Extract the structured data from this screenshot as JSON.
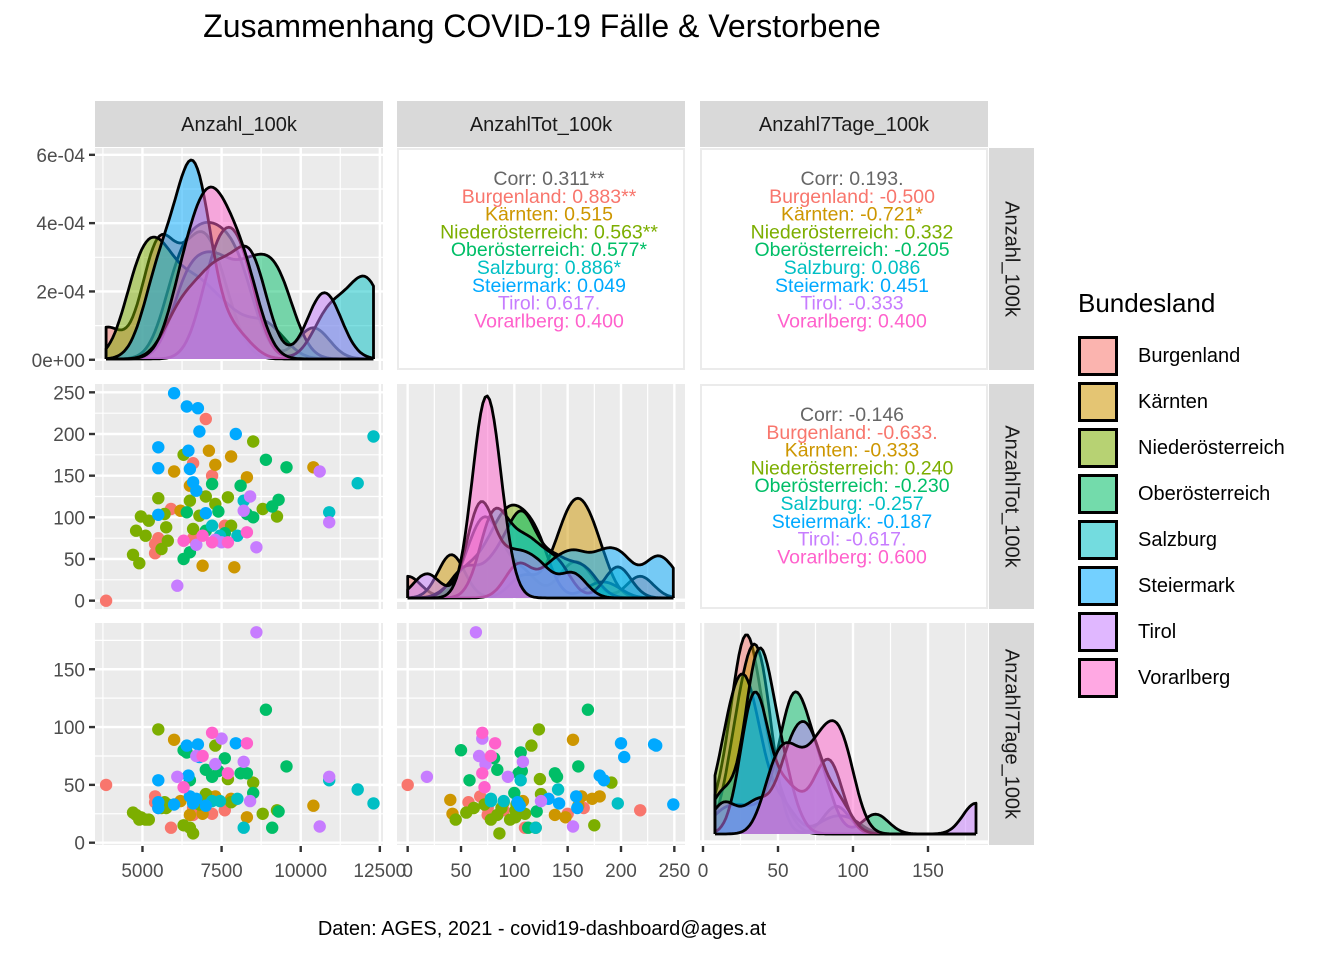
{
  "title": "Zusammenhang COVID-19 Fälle & Verstorbene",
  "caption": "Daten: AGES, 2021 - covid19-dashboard@ages.at",
  "legend": {
    "title": "Bundesland",
    "items": [
      {
        "label": "Burgenland",
        "color": "#F8766D"
      },
      {
        "label": "Kärnten",
        "color": "#CD9600"
      },
      {
        "label": "Niederösterreich",
        "color": "#7CAE00"
      },
      {
        "label": "Oberösterreich",
        "color": "#00BE67"
      },
      {
        "label": "Salzburg",
        "color": "#00BFC4"
      },
      {
        "label": "Steiermark",
        "color": "#00A9FF"
      },
      {
        "label": "Tirol",
        "color": "#C77CFF"
      },
      {
        "label": "Vorarlberg",
        "color": "#FF61CC"
      }
    ]
  },
  "chart_data": {
    "type": "scatter",
    "subtype": "pairs-matrix (ggpairs)",
    "title": "Zusammenhang COVID-19 Fälle & Verstorbene",
    "variables": [
      "Anzahl_100k",
      "AnzahlTot_100k",
      "Anzahl7Tage_100k"
    ],
    "groups": [
      "Burgenland",
      "Kärnten",
      "Niederösterreich",
      "Oberösterreich",
      "Salzburg",
      "Steiermark",
      "Tirol",
      "Vorarlberg"
    ],
    "axes": {
      "Anzahl_100k": {
        "range": [
          3500,
          12600
        ],
        "ticks": [
          "5000",
          "7500",
          "10000",
          "12500"
        ],
        "tick_values": [
          5000,
          7500,
          10000,
          12500
        ]
      },
      "AnzahlTot_100k": {
        "range": [
          -10,
          260
        ],
        "ticks": [
          "0",
          "50",
          "100",
          "150",
          "200",
          "250"
        ],
        "tick_values": [
          0,
          50,
          100,
          150,
          200,
          250
        ]
      },
      "Anzahl7Tage_100k": {
        "range": [
          -2,
          190
        ],
        "ticks": [
          "0",
          "50",
          "100",
          "150"
        ],
        "tick_values": [
          0,
          50,
          100,
          150
        ]
      },
      "density_row1": {
        "range": [
          -3e-05,
          0.00062
        ],
        "ticks": [
          "0e+00",
          "2e-04",
          "4e-04",
          "6e-04"
        ],
        "tick_values": [
          0,
          0.0002,
          0.0004,
          0.0006
        ]
      }
    },
    "grid": true,
    "legend_position": "right",
    "correlations": {
      "Anzahl_100k__AnzahlTot_100k": {
        "overall": "Corr: 0.311**",
        "by_group": [
          "Burgenland: 0.883**",
          "Kärnten: 0.515",
          "Niederösterreich: 0.563**",
          "Oberösterreich: 0.577*",
          "Salzburg: 0.886*",
          "Steiermark: 0.049",
          "Tirol: 0.617.",
          "Vorarlberg: 0.400"
        ]
      },
      "Anzahl_100k__Anzahl7Tage_100k": {
        "overall": "Corr: 0.193.",
        "by_group": [
          "Burgenland: -0.500",
          "Kärnten: -0.721*",
          "Niederösterreich: 0.332",
          "Oberösterreich: -0.205",
          "Salzburg: 0.086",
          "Steiermark: 0.451",
          "Tirol: -0.333",
          "Vorarlberg: 0.400"
        ]
      },
      "AnzahlTot_100k__Anzahl7Tage_100k": {
        "overall": "Corr: -0.146",
        "by_group": [
          "Burgenland: -0.633.",
          "Kärnten: -0.333",
          "Niederösterreich: 0.240",
          "Oberösterreich: -0.230",
          "Salzburg: -0.257",
          "Steiermark: -0.187",
          "Tirol: -0.617.",
          "Vorarlberg: 0.600"
        ]
      }
    },
    "points": [
      {
        "g": 0,
        "a": 3850,
        "t": 0,
        "s": 50
      },
      {
        "g": 0,
        "a": 7000,
        "t": 218,
        "s": 28
      },
      {
        "g": 0,
        "a": 6600,
        "t": 165,
        "s": 30
      },
      {
        "g": 0,
        "a": 7200,
        "t": 150,
        "s": 25
      },
      {
        "g": 0,
        "a": 5900,
        "t": 110,
        "s": 13
      },
      {
        "g": 0,
        "a": 5500,
        "t": 75,
        "s": 30
      },
      {
        "g": 0,
        "a": 5400,
        "t": 68,
        "s": 40
      },
      {
        "g": 0,
        "a": 5400,
        "t": 57,
        "s": 35
      },
      {
        "g": 0,
        "a": 6600,
        "t": 75,
        "s": 24
      },
      {
        "g": 0,
        "a": 7600,
        "t": 90,
        "s": 28
      },
      {
        "g": 1,
        "a": 6000,
        "t": 155,
        "s": 89
      },
      {
        "g": 1,
        "a": 6500,
        "t": 138,
        "s": 24
      },
      {
        "g": 1,
        "a": 6200,
        "t": 108,
        "s": 36
      },
      {
        "g": 1,
        "a": 7100,
        "t": 180,
        "s": 40
      },
      {
        "g": 1,
        "a": 7300,
        "t": 163,
        "s": 40
      },
      {
        "g": 1,
        "a": 7800,
        "t": 173,
        "s": 38
      },
      {
        "g": 1,
        "a": 8300,
        "t": 148,
        "s": 22
      },
      {
        "g": 1,
        "a": 10400,
        "t": 160,
        "s": 32
      },
      {
        "g": 1,
        "a": 6900,
        "t": 42,
        "s": 25
      },
      {
        "g": 1,
        "a": 7900,
        "t": 40,
        "s": 37
      },
      {
        "g": 2,
        "a": 4700,
        "t": 55,
        "s": 26
      },
      {
        "g": 2,
        "a": 4900,
        "t": 45,
        "s": 20
      },
      {
        "g": 2,
        "a": 4800,
        "t": 84,
        "s": 24
      },
      {
        "g": 2,
        "a": 5100,
        "t": 78,
        "s": 20
      },
      {
        "g": 2,
        "a": 4950,
        "t": 101,
        "s": 22
      },
      {
        "g": 2,
        "a": 5200,
        "t": 96,
        "s": 20
      },
      {
        "g": 2,
        "a": 5500,
        "t": 123,
        "s": 98
      },
      {
        "g": 2,
        "a": 5700,
        "t": 104,
        "s": 35
      },
      {
        "g": 2,
        "a": 5800,
        "t": 72,
        "s": 33
      },
      {
        "g": 2,
        "a": 5600,
        "t": 62,
        "s": 30
      },
      {
        "g": 2,
        "a": 5750,
        "t": 88,
        "s": 30
      },
      {
        "g": 2,
        "a": 6300,
        "t": 175,
        "s": 15
      },
      {
        "g": 2,
        "a": 6500,
        "t": 120,
        "s": 13
      },
      {
        "g": 2,
        "a": 6600,
        "t": 86,
        "s": 8
      },
      {
        "g": 2,
        "a": 6800,
        "t": 102,
        "s": 33
      },
      {
        "g": 2,
        "a": 7000,
        "t": 125,
        "s": 42
      },
      {
        "g": 2,
        "a": 7300,
        "t": 116,
        "s": 84
      },
      {
        "g": 2,
        "a": 7700,
        "t": 124,
        "s": 55
      },
      {
        "g": 2,
        "a": 7800,
        "t": 90,
        "s": 35
      },
      {
        "g": 2,
        "a": 8500,
        "t": 191,
        "s": 52
      },
      {
        "g": 2,
        "a": 8800,
        "t": 110,
        "s": 25
      },
      {
        "g": 2,
        "a": 9250,
        "t": 101,
        "s": 28
      },
      {
        "g": 3,
        "a": 6300,
        "t": 50,
        "s": 80
      },
      {
        "g": 3,
        "a": 6500,
        "t": 58,
        "s": 54
      },
      {
        "g": 3,
        "a": 6400,
        "t": 106,
        "s": 78
      },
      {
        "g": 3,
        "a": 7000,
        "t": 84,
        "s": 63
      },
      {
        "g": 3,
        "a": 7200,
        "t": 140,
        "s": 57
      },
      {
        "g": 3,
        "a": 7400,
        "t": 107,
        "s": 62
      },
      {
        "g": 3,
        "a": 7600,
        "t": 81,
        "s": 73
      },
      {
        "g": 3,
        "a": 8100,
        "t": 138,
        "s": 60
      },
      {
        "g": 3,
        "a": 8300,
        "t": 104,
        "s": 60
      },
      {
        "g": 3,
        "a": 8500,
        "t": 100,
        "s": 43
      },
      {
        "g": 3,
        "a": 8900,
        "t": 169,
        "s": 115
      },
      {
        "g": 3,
        "a": 9100,
        "t": 113,
        "s": 13
      },
      {
        "g": 3,
        "a": 9300,
        "t": 121,
        "s": 27
      },
      {
        "g": 3,
        "a": 9550,
        "t": 160,
        "s": 66
      },
      {
        "g": 4,
        "a": 7200,
        "t": 90,
        "s": 36
      },
      {
        "g": 4,
        "a": 7450,
        "t": 78,
        "s": 36
      },
      {
        "g": 4,
        "a": 8000,
        "t": 78,
        "s": 38
      },
      {
        "g": 4,
        "a": 8200,
        "t": 120,
        "s": 13
      },
      {
        "g": 4,
        "a": 10900,
        "t": 106,
        "s": 54
      },
      {
        "g": 4,
        "a": 11800,
        "t": 141,
        "s": 46
      },
      {
        "g": 4,
        "a": 12300,
        "t": 197,
        "s": 34
      },
      {
        "g": 5,
        "a": 5500,
        "t": 184,
        "s": 54
      },
      {
        "g": 5,
        "a": 5500,
        "t": 159,
        "s": 30
      },
      {
        "g": 5,
        "a": 5500,
        "t": 103,
        "s": 35
      },
      {
        "g": 5,
        "a": 6000,
        "t": 249,
        "s": 33
      },
      {
        "g": 5,
        "a": 6400,
        "t": 233,
        "s": 84
      },
      {
        "g": 5,
        "a": 6750,
        "t": 231,
        "s": 85
      },
      {
        "g": 5,
        "a": 6800,
        "t": 203,
        "s": 74
      },
      {
        "g": 5,
        "a": 6450,
        "t": 180,
        "s": 58
      },
      {
        "g": 5,
        "a": 6500,
        "t": 158,
        "s": 40
      },
      {
        "g": 5,
        "a": 6600,
        "t": 142,
        "s": 34
      },
      {
        "g": 5,
        "a": 6700,
        "t": 132,
        "s": 38
      },
      {
        "g": 5,
        "a": 7000,
        "t": 105,
        "s": 32
      },
      {
        "g": 5,
        "a": 7950,
        "t": 200,
        "s": 86
      },
      {
        "g": 6,
        "a": 6100,
        "t": 18,
        "s": 57
      },
      {
        "g": 6,
        "a": 6700,
        "t": 67,
        "s": 75
      },
      {
        "g": 6,
        "a": 7300,
        "t": 73,
        "s": 68
      },
      {
        "g": 6,
        "a": 8200,
        "t": 108,
        "s": 70
      },
      {
        "g": 6,
        "a": 8400,
        "t": 125,
        "s": 36
      },
      {
        "g": 6,
        "a": 8600,
        "t": 64,
        "s": 182
      },
      {
        "g": 6,
        "a": 10600,
        "t": 155,
        "s": 14
      },
      {
        "g": 6,
        "a": 10900,
        "t": 94,
        "s": 57
      },
      {
        "g": 6,
        "a": 7500,
        "t": 70,
        "s": 90
      },
      {
        "g": 7,
        "a": 6300,
        "t": 72,
        "s": 48
      },
      {
        "g": 7,
        "a": 6900,
        "t": 78,
        "s": 75
      },
      {
        "g": 7,
        "a": 7200,
        "t": 70,
        "s": 95
      },
      {
        "g": 7,
        "a": 7700,
        "t": 70,
        "s": 60
      },
      {
        "g": 7,
        "a": 8300,
        "t": 82,
        "s": 86
      }
    ]
  }
}
